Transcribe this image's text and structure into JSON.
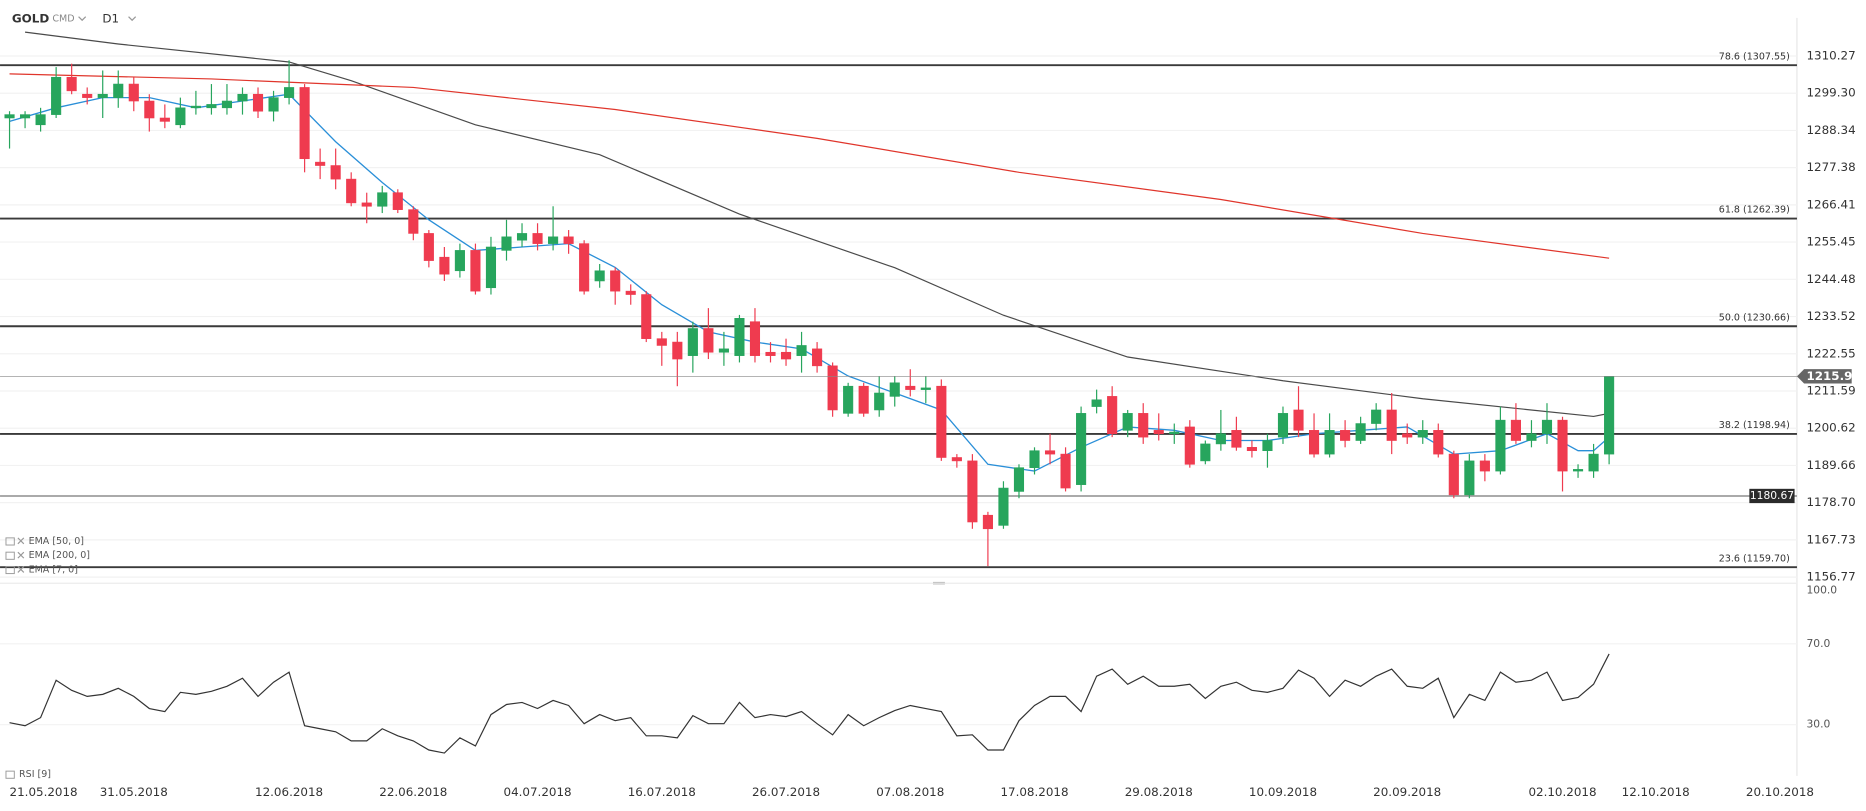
{
  "chart_data": [
    {
      "type": "candlestick",
      "title": "GOLD",
      "subtitle": "CMD",
      "timeframe": "D1",
      "categories": [
        "21.05.2018",
        null,
        null,
        null,
        null,
        null,
        null,
        null,
        "31.05.2018",
        null,
        null,
        null,
        null,
        null,
        null,
        null,
        null,
        null,
        "12.06.2018",
        null,
        null,
        null,
        null,
        null,
        null,
        null,
        "22.06.2018",
        null,
        null,
        null,
        null,
        null,
        null,
        null,
        "04.07.2018",
        null,
        null,
        null,
        null,
        null,
        null,
        null,
        "16.07.2018",
        null,
        null,
        null,
        null,
        null,
        null,
        null,
        "26.07.2018",
        null,
        null,
        null,
        null,
        null,
        null,
        null,
        "07.08.2018",
        null,
        null,
        null,
        null,
        null,
        null,
        null,
        "17.08.2018",
        null,
        null,
        null,
        null,
        null,
        null,
        null,
        "29.08.2018",
        null,
        null,
        null,
        null,
        null,
        null,
        null,
        "10.09.2018",
        null,
        null,
        null,
        null,
        null,
        null,
        null,
        "20.09.2018",
        null,
        null,
        null,
        null,
        null,
        null,
        null,
        null,
        null,
        "02.10.2018",
        null,
        null,
        null,
        null,
        null,
        "12.10.2018",
        null,
        null,
        null,
        null,
        null,
        null,
        null,
        "20.10.2018"
      ],
      "open": [
        1292,
        1292,
        1290,
        1293,
        1304,
        1299,
        1298,
        1298,
        1302,
        1297,
        1292,
        1290,
        1295,
        1295,
        1295,
        1297,
        1299,
        1294,
        1298,
        1301,
        1279,
        1278,
        1274,
        1267,
        1266,
        1270,
        1265,
        1258,
        1251,
        1247,
        1253,
        1242,
        1253,
        1256,
        1258,
        1255,
        1257,
        1255,
        1244,
        1247,
        1241,
        1240,
        1227,
        1226,
        1222,
        1230,
        1223,
        1222,
        1232,
        1223,
        1223,
        1222,
        1224,
        1219,
        1205,
        1213,
        1206,
        1210,
        1213,
        1212,
        1213,
        1192,
        1191,
        1175,
        1172,
        1182,
        1189,
        1194,
        1193,
        1184,
        1207,
        1210,
        1200,
        1205,
        1200,
        1199,
        1201,
        1191,
        1196,
        1200,
        1195,
        1194,
        1198,
        1206,
        1200,
        1193,
        1200,
        1197,
        1202,
        1206,
        1199,
        1198,
        1200,
        1193,
        1181,
        1191,
        1188,
        1203,
        1197,
        1199,
        1203,
        1188,
        1188,
        1193,
        null,
        null,
        null,
        null,
        null,
        null,
        null,
        null,
        null,
        null,
        null
      ],
      "high": [
        1294,
        1294,
        1295,
        1307,
        1308,
        1301,
        1306,
        1306,
        1304,
        1299,
        1296,
        1298,
        1300,
        1302,
        1302,
        1301,
        1301,
        1300,
        1309,
        1302,
        1283,
        1283,
        1276,
        1270,
        1272,
        1271,
        1266,
        1259,
        1254,
        1255,
        1255,
        1257,
        1262,
        1261,
        1261,
        1266,
        1259,
        1256,
        1249,
        1248,
        1243,
        1241,
        1229,
        1229,
        1232,
        1236,
        1229,
        1234,
        1236,
        1226,
        1227,
        1229,
        1226,
        1220,
        1214,
        1214,
        1216,
        1216,
        1218,
        1216,
        1215,
        1193,
        1193,
        1176,
        1185,
        1190,
        1195,
        1199,
        1195,
        1207,
        1212,
        1213,
        1206,
        1208,
        1205,
        1202,
        1203,
        1197,
        1206,
        1204,
        1197,
        1199,
        1207,
        1213,
        1205,
        1205,
        1203,
        1204,
        1208,
        1211,
        1202,
        1203,
        1202,
        1194,
        1193,
        1193,
        1207,
        1208,
        1203,
        1208,
        1204,
        1190,
        1196,
        1216,
        null,
        null,
        null,
        null,
        null,
        null,
        null,
        null,
        null,
        null,
        null
      ],
      "low": [
        1283,
        1289,
        1288,
        1292,
        1299,
        1296,
        1292,
        1295,
        1294,
        1288,
        1289,
        1289,
        1293,
        1293,
        1293,
        1293,
        1292,
        1291,
        1296,
        1276,
        1274,
        1271,
        1266,
        1261,
        1264,
        1264,
        1256,
        1248,
        1244,
        1245,
        1240,
        1240,
        1250,
        1254,
        1253,
        1253,
        1252,
        1240,
        1242,
        1237,
        1237,
        1226,
        1219,
        1213,
        1217,
        1221,
        1219,
        1220,
        1220,
        1220,
        1219,
        1217,
        1217,
        1204,
        1204,
        1204,
        1204,
        1207,
        1210,
        1208,
        1191,
        1189,
        1171,
        1160,
        1171,
        1180,
        1187,
        1190,
        1182,
        1182,
        1205,
        1198,
        1198,
        1196,
        1197,
        1196,
        1189,
        1190,
        1194,
        1194,
        1192,
        1189,
        1196,
        1198,
        1192,
        1192,
        1195,
        1196,
        1200,
        1193,
        1196,
        1196,
        1192,
        1180,
        1180,
        1185,
        1187,
        1196,
        1195,
        1196,
        1182,
        1186,
        1186,
        1190,
        null,
        null,
        null,
        null,
        null,
        null,
        null,
        null,
        null,
        null,
        null
      ],
      "close": [
        1293,
        1293,
        1293,
        1304,
        1300,
        1298,
        1299,
        1302,
        1297,
        1292,
        1291,
        1295,
        1295.5,
        1296,
        1297,
        1299,
        1294,
        1298,
        1301,
        1280,
        1278,
        1274,
        1267,
        1266,
        1270,
        1265,
        1258,
        1250,
        1246,
        1253,
        1241,
        1254,
        1257,
        1258,
        1255,
        1257,
        1255,
        1241,
        1247,
        1241,
        1240,
        1227,
        1225,
        1221,
        1230,
        1223,
        1224,
        1233,
        1222,
        1222,
        1221,
        1225,
        1219,
        1206,
        1213,
        1205,
        1211,
        1214,
        1212,
        1212.5,
        1192,
        1191,
        1173,
        1171,
        1183,
        1189,
        1194,
        1193,
        1183,
        1205,
        1209,
        1199,
        1205,
        1198,
        1199,
        1199.5,
        1190,
        1196,
        1199,
        1195,
        1194,
        1197,
        1205,
        1200,
        1193,
        1200,
        1197,
        1202,
        1206,
        1197,
        1198,
        1200,
        1193,
        1181,
        1191,
        1188,
        1203,
        1197,
        1199,
        1203,
        1188,
        1188.5,
        1193,
        1215.91,
        null,
        null,
        null,
        null,
        null,
        null,
        null,
        null,
        null,
        null,
        null
      ],
      "up_color": "#27a55d",
      "down_color": "#ef3b4f",
      "overlays": [
        {
          "name": "EMA [50, 0]",
          "color": "#4a4a4a",
          "x": [
            1,
            7,
            18,
            22,
            30,
            38,
            47,
            57,
            64,
            72,
            82,
            91,
            102,
            103
          ],
          "values": [
            1317.3,
            1313.8,
            1308.5,
            1303,
            1290,
            1281.2,
            1263.7,
            1247.9,
            1233.9,
            1221.6,
            1214.6,
            1209.3,
            1204.1,
            1205
          ]
        },
        {
          "name": "EMA [200, 0]",
          "color": "#e0352b",
          "x": [
            0,
            13,
            26,
            39,
            52,
            65,
            78,
            91,
            103
          ],
          "values": [
            1305,
            1303.5,
            1301,
            1294.5,
            1286,
            1276,
            1268,
            1258,
            1250.7
          ]
        },
        {
          "name": "EMA [7, 0]",
          "color": "#2a8fd8",
          "x": [
            0,
            3,
            6,
            9,
            12,
            15,
            18,
            21,
            24,
            27,
            30,
            33,
            36,
            39,
            42,
            45,
            48,
            51,
            54,
            57,
            60,
            63,
            66,
            69,
            72,
            75,
            78,
            81,
            84,
            87,
            90,
            93,
            96,
            99,
            101,
            102,
            103
          ],
          "values": [
            1291,
            1295,
            1298,
            1298,
            1295,
            1297,
            1299,
            1285,
            1273,
            1262,
            1253,
            1254,
            1255,
            1248,
            1237,
            1229,
            1226,
            1224,
            1216,
            1211,
            1206,
            1190,
            1188,
            1195,
            1201,
            1200,
            1197,
            1197,
            1199,
            1200,
            1201,
            1193,
            1194,
            1199,
            1194,
            1194,
            1198
          ]
        }
      ],
      "levels": [
        {
          "value": 1307.55,
          "label": "78.6 (1307.55)"
        },
        {
          "value": 1262.39,
          "label": "61.8 (1262.39)"
        },
        {
          "value": 1230.66,
          "label": "50.0 (1230.66)"
        },
        {
          "value": 1198.94,
          "label": "38.2 (1198.94)"
        },
        {
          "value": 1159.7,
          "label": "23.6 (1159.70)"
        }
      ],
      "support_line": 1180.67,
      "last_price": 1215.91,
      "ylim": [
        1155,
        1321.5
      ],
      "yticks": [
        1310.27,
        {
          "value": 1299.3,
          "label": "1299.30"
        },
        1288.34,
        1277.38,
        1266.41,
        1255.45,
        1244.48,
        1233.52,
        1222.55,
        1211.59,
        1200.62,
        1189.66,
        {
          "value": 1178.7,
          "label": "1178.70"
        },
        1167.73,
        1156.77
      ],
      "grid": true
    },
    {
      "type": "line",
      "series": [
        {
          "name": "RSI [9]",
          "color": "#333333",
          "values": [
            31,
            29.5,
            33.5,
            52,
            47,
            44,
            45,
            48,
            44,
            38,
            36.5,
            46,
            45,
            46.5,
            49,
            53,
            44,
            51,
            56,
            29.5,
            28,
            26.5,
            22,
            22,
            28,
            24.5,
            22,
            17.5,
            16,
            23.5,
            19.5,
            35,
            40,
            41,
            38,
            42,
            39.5,
            30.5,
            35,
            32,
            33.5,
            24.5,
            24.5,
            23.5,
            34.5,
            30.5,
            30.5,
            41,
            33.5,
            35,
            34,
            36.5,
            30.5,
            25,
            35,
            29.5,
            33.5,
            37,
            39.5,
            38,
            36.5,
            24.5,
            25,
            17.5,
            17.5,
            32,
            39.5,
            44,
            44,
            36.5,
            54,
            57.5,
            50,
            54,
            49,
            49,
            50,
            43,
            49,
            51,
            47,
            46,
            48,
            57,
            53,
            44,
            52,
            49,
            54,
            57.5,
            49,
            48,
            53,
            33.5,
            45,
            42,
            56,
            51,
            52,
            56,
            42,
            43.5,
            50,
            65
          ]
        }
      ],
      "ylim": [
        4.7,
        100
      ],
      "yticks": [
        {
          "value": 100,
          "label": "100.0"
        },
        {
          "value": 70,
          "label": "70.0"
        },
        {
          "value": 30,
          "label": "30.0"
        }
      ],
      "grid": true
    }
  ]
}
